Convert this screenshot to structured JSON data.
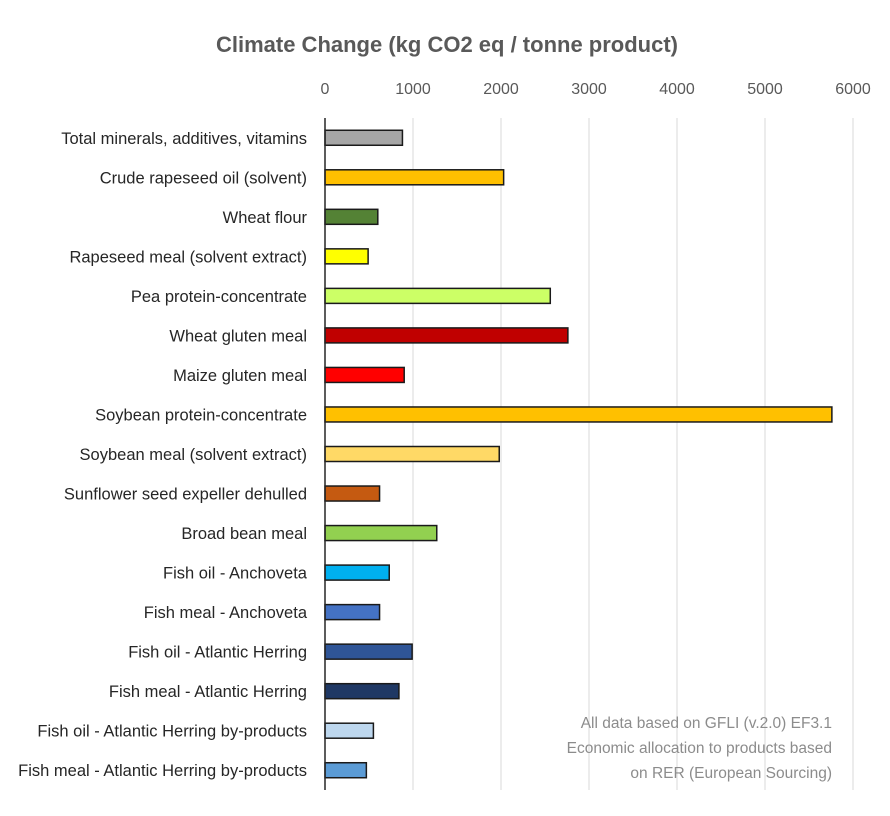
{
  "chart_data": {
    "type": "bar",
    "orientation": "horizontal",
    "title": "Climate Change (kg CO2 eq / tonne product)",
    "xlabel": "",
    "ylabel": "",
    "xlim": [
      0,
      6000
    ],
    "ticks": [
      0,
      1000,
      2000,
      3000,
      4000,
      5000,
      6000
    ],
    "grid": true,
    "bars": [
      {
        "category": "Total minerals, additives, vitamins",
        "value": 880,
        "color": "#a6a6a6"
      },
      {
        "category": "Crude rapeseed oil (solvent)",
        "value": 2030,
        "color": "#ffc000"
      },
      {
        "category": "Wheat flour",
        "value": 600,
        "color": "#548235"
      },
      {
        "category": "Rapeseed meal (solvent extract)",
        "value": 490,
        "color": "#ffff00"
      },
      {
        "category": "Pea protein-concentrate",
        "value": 2560,
        "color": "#ccff66"
      },
      {
        "category": "Wheat gluten meal",
        "value": 2760,
        "color": "#c00000"
      },
      {
        "category": "Maize gluten meal",
        "value": 900,
        "color": "#ff0000"
      },
      {
        "category": "Soybean protein-concentrate",
        "value": 5760,
        "color": "#ffc000"
      },
      {
        "category": "Soybean meal (solvent extract)",
        "value": 1980,
        "color": "#ffd966"
      },
      {
        "category": "Sunflower seed expeller dehulled",
        "value": 620,
        "color": "#c55a11"
      },
      {
        "category": "Broad bean meal",
        "value": 1270,
        "color": "#92d050"
      },
      {
        "category": "Fish oil - Anchoveta",
        "value": 730,
        "color": "#00b0f0"
      },
      {
        "category": "Fish meal - Anchoveta",
        "value": 620,
        "color": "#4472c4"
      },
      {
        "category": "Fish oil - Atlantic Herring",
        "value": 990,
        "color": "#2f5597"
      },
      {
        "category": "Fish meal - Atlantic Herring",
        "value": 840,
        "color": "#1f3864"
      },
      {
        "category": "Fish oil - Atlantic Herring by-products",
        "value": 550,
        "color": "#bdd7ee"
      },
      {
        "category": "Fish meal - Atlantic Herring by-products",
        "value": 470,
        "color": "#5b9bd5"
      }
    ],
    "annotations": [
      "All data based on GFLI (v.2.0) EF3.1",
      "Economic allocation to products based",
      "on RER (European Sourcing)"
    ]
  }
}
